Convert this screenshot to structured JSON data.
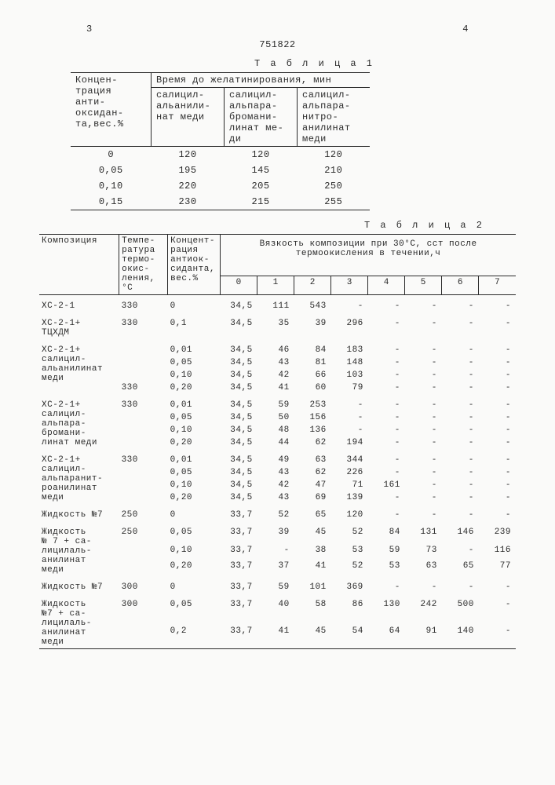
{
  "page": {
    "left_num": "3",
    "right_num": "4",
    "doc_id": "751822"
  },
  "t1": {
    "title": "Т а б л и ц а 1",
    "header_left": "Концен-\nтрация\nанти-\nоксидан-\nта,вес.%",
    "header_right": "Время до желатинирования, мин",
    "sub1": "салицил-\nальанили-\nнат меди",
    "sub2": "салицил-\nальпара-\nбромани-\nлинат ме-\nди",
    "sub3": "салицил-\nальпара-\nнитро-\nанилинат\nмеди",
    "rows": [
      {
        "c": "0",
        "v": [
          "120",
          "120",
          "120"
        ]
      },
      {
        "c": "0,05",
        "v": [
          "195",
          "145",
          "210"
        ]
      },
      {
        "c": "0,10",
        "v": [
          "220",
          "205",
          "250"
        ]
      },
      {
        "c": "0,15",
        "v": [
          "230",
          "215",
          "255"
        ]
      }
    ]
  },
  "t2": {
    "title": "Т а б л и ц а 2",
    "h_comp": "Композиция",
    "h_temp": "Темпе-\nратура\nтермо-\nокис-\nления,\n°С",
    "h_conc": "Концент-\nрация\nантиок-\nсиданта,\nвес.%",
    "h_visc": "Вязкость композиции при 30°С, сст после термоокисления в течении,ч",
    "visc_cols": [
      "0",
      "1",
      "2",
      "3",
      "4",
      "5",
      "6",
      "7"
    ],
    "blocks": [
      {
        "comp": "ХС-2-1",
        "temp": "330",
        "rows": [
          {
            "c": "0",
            "v": [
              "34,5",
              "111",
              "543",
              "-",
              "-",
              "-",
              "-",
              "-"
            ]
          }
        ]
      },
      {
        "comp": "ХС-2-1+\nТЦХДМ",
        "temp": "330",
        "rows": [
          {
            "c": "0,1",
            "v": [
              "34,5",
              "35",
              "39",
              "296",
              "-",
              "-",
              "-",
              "-"
            ]
          }
        ]
      },
      {
        "comp": "ХС-2-1+\nсалицил-\nальанилинат\nмеди",
        "temp": "330",
        "temp_bottom": true,
        "rows": [
          {
            "c": "0,01",
            "v": [
              "34,5",
              "46",
              "84",
              "183",
              "-",
              "-",
              "-",
              "-"
            ]
          },
          {
            "c": "0,05",
            "v": [
              "34,5",
              "43",
              "81",
              "148",
              "-",
              "-",
              "-",
              "-"
            ]
          },
          {
            "c": "0,10",
            "v": [
              "34,5",
              "42",
              "66",
              "103",
              "-",
              "-",
              "-",
              "-"
            ]
          },
          {
            "c": "0,20",
            "v": [
              "34,5",
              "41",
              "60",
              "79",
              "-",
              "-",
              "-",
              "-"
            ]
          }
        ]
      },
      {
        "comp": "ХС-2-1+\nсалицил-\nальпара-\nбромани-\nлинат меди",
        "temp": "330",
        "rows": [
          {
            "c": "0,01",
            "v": [
              "34,5",
              "59",
              "253",
              "-",
              "-",
              "-",
              "-",
              "-"
            ]
          },
          {
            "c": "0,05",
            "v": [
              "34,5",
              "50",
              "156",
              "-",
              "-",
              "-",
              "-",
              "-"
            ]
          },
          {
            "c": "0,10",
            "v": [
              "34,5",
              "48",
              "136",
              "-",
              "-",
              "-",
              "-",
              "-"
            ]
          },
          {
            "c": "0,20",
            "v": [
              "34,5",
              "44",
              "62",
              "194",
              "-",
              "-",
              "-",
              "-"
            ]
          }
        ]
      },
      {
        "comp": "ХС-2-1+\nсалицил-\nальпаранит-\nроанилинат\nмеди",
        "temp": "330",
        "rows": [
          {
            "c": "0,01",
            "v": [
              "34,5",
              "49",
              "63",
              "344",
              "-",
              "-",
              "-",
              "-"
            ]
          },
          {
            "c": "0,05",
            "v": [
              "34,5",
              "43",
              "62",
              "226",
              "-",
              "-",
              "-",
              "-"
            ]
          },
          {
            "c": "0,10",
            "v": [
              "34,5",
              "42",
              "47",
              "71",
              "161",
              "-",
              "-",
              "-"
            ]
          },
          {
            "c": "0,20",
            "v": [
              "34,5",
              "43",
              "69",
              "139",
              "-",
              "-",
              "-",
              "-"
            ]
          }
        ]
      },
      {
        "comp": "Жидкость №7",
        "temp": "250",
        "rows": [
          {
            "c": "0",
            "v": [
              "33,7",
              "52",
              "65",
              "120",
              "-",
              "-",
              "-",
              "-"
            ]
          }
        ]
      },
      {
        "comp": "Жидкость\n№ 7 + са-\nлицилаль-\nанилинат\nмеди",
        "temp": "250",
        "rows": [
          {
            "c": "0,05",
            "v": [
              "33,7",
              "39",
              "45",
              "52",
              "84",
              "131",
              "146",
              "239"
            ]
          },
          {
            "c": "0,10",
            "v": [
              "33,7",
              "-",
              "38",
              "53",
              "59",
              "73",
              "-",
              "116"
            ]
          },
          {
            "c": "0,20",
            "v": [
              "33,7",
              "37",
              "41",
              "52",
              "53",
              "63",
              "65",
              "77"
            ]
          }
        ]
      },
      {
        "comp": "Жидкость №7",
        "temp": "300",
        "rows": [
          {
            "c": "0",
            "v": [
              "33,7",
              "59",
              "101",
              "369",
              "-",
              "-",
              "-",
              "-"
            ]
          }
        ]
      },
      {
        "comp": "Жидкость\n№7 + са-\nлицилаль-\nанилинат\nмеди",
        "temp": "300",
        "rows": [
          {
            "c": "0,05",
            "v": [
              "33,7",
              "40",
              "58",
              "86",
              "130",
              "242",
              "500",
              "-"
            ]
          },
          {
            "c": "0,2",
            "v": [
              "33,7",
              "41",
              "45",
              "54",
              "64",
              "91",
              "140",
              "-"
            ]
          }
        ]
      }
    ]
  }
}
